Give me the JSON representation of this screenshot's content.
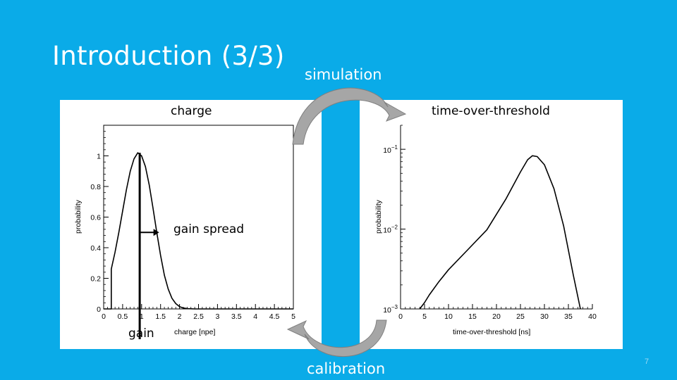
{
  "slide": {
    "title": "Introduction (3/3)",
    "simulation_label": "simulation",
    "calibration_label": "calibration",
    "charge_label": "charge",
    "tot_label": "time-over-threshold",
    "gain_spread_label": "gain spread",
    "gain_label": "gain",
    "slide_number": "7",
    "background_color": "#0aabe8"
  },
  "chart_data": [
    {
      "type": "line",
      "title": "",
      "xlabel": "charge [npe]",
      "ylabel": "probability",
      "xlim": [
        0,
        5
      ],
      "ylim": [
        0,
        1.2
      ],
      "x_ticks": [
        "0",
        "0.5",
        "1",
        "1.5",
        "2",
        "2.5",
        "3",
        "3.5",
        "4",
        "4.5",
        "5"
      ],
      "y_ticks": [
        "0",
        "0.2",
        "0.4",
        "0.6",
        "0.8",
        "1"
      ],
      "series": [
        {
          "x": [
            0,
            0.2,
            0.2,
            0.3,
            0.4,
            0.5,
            0.6,
            0.7,
            0.8,
            0.9,
            1.0,
            1.1,
            1.2,
            1.3,
            1.4,
            1.5,
            1.6,
            1.7,
            1.8,
            1.9,
            2.0,
            2.1,
            2.2,
            2.4,
            2.6,
            5.0
          ],
          "y": [
            0,
            0,
            0.26,
            0.37,
            0.5,
            0.64,
            0.78,
            0.9,
            0.98,
            1.02,
            1.0,
            0.93,
            0.81,
            0.66,
            0.5,
            0.35,
            0.22,
            0.13,
            0.07,
            0.035,
            0.015,
            0.006,
            0.002,
            0,
            0,
            0
          ]
        }
      ]
    },
    {
      "type": "line",
      "title": "",
      "xlabel": "time-over-threshold [ns]",
      "ylabel": "probability",
      "log_y": true,
      "xlim": [
        0,
        40
      ],
      "ylim": [
        0.001,
        0.2
      ],
      "x_ticks": [
        "0",
        "5",
        "10",
        "15",
        "20",
        "25",
        "30",
        "35",
        "40"
      ],
      "y_ticks": [
        "10^-3",
        "10^-2",
        "10^-1"
      ],
      "series": [
        {
          "x": [
            4,
            5,
            6,
            8,
            10,
            14,
            18,
            22,
            25,
            26.5,
            27.5,
            28.5,
            30,
            32,
            34,
            36,
            37.5
          ],
          "y": [
            0.001,
            0.0012,
            0.0015,
            0.0022,
            0.0031,
            0.0055,
            0.0098,
            0.024,
            0.052,
            0.074,
            0.083,
            0.081,
            0.064,
            0.032,
            0.011,
            0.0027,
            0.001
          ]
        }
      ]
    }
  ]
}
